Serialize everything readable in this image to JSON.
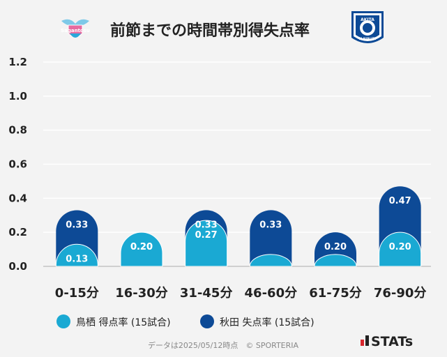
{
  "header": {
    "title": "前節までの時間帯別得失点率",
    "left_logo_text": "Sagantosu",
    "right_logo_text_top": "AKITA",
    "right_logo_text_bottom": "BLAUBLITZ"
  },
  "footer": {
    "note": "データは2025/05/12時点　© SPORTERIA",
    "brand": "STATs"
  },
  "colors": {
    "background": "#f3f3f3",
    "tosu": "#1aa9d3",
    "akita": "#0d4a96",
    "grid": "#ffffff",
    "axis_text": "#222222"
  },
  "chart_data": {
    "type": "bar",
    "categories": [
      "0-15分",
      "16-30分",
      "31-45分",
      "46-60分",
      "61-75分",
      "76-90分"
    ],
    "ylim": [
      0,
      1.2
    ],
    "yticks": [
      "0.0",
      "0.2",
      "0.4",
      "0.6",
      "0.8",
      "1.0",
      "1.2"
    ],
    "series": [
      {
        "name": "鳥栖 得点率 (15試合)",
        "values": [
          0.13,
          0.2,
          0.27,
          0.07,
          0.07,
          0.2
        ],
        "labels": [
          "0.13",
          "0.20",
          "0.27",
          "",
          "",
          "0.20"
        ]
      },
      {
        "name": "秋田 失点率 (15試合)",
        "values": [
          0.33,
          0.2,
          0.33,
          0.33,
          0.2,
          0.47
        ],
        "labels": [
          "0.33",
          "0.20",
          "0.33",
          "0.33",
          "0.20",
          "0.47"
        ]
      }
    ],
    "legend_position": "bottom-left",
    "grid": true
  }
}
